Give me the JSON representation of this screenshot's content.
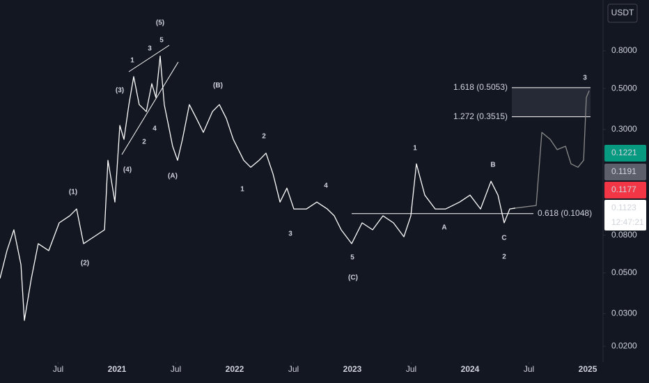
{
  "chart_data": {
    "type": "line",
    "currency": "USDT",
    "log_scale": true,
    "xlim": [
      2020.006,
      2025.13
    ],
    "xticks": [
      {
        "value": 2020.5,
        "label": "Jul"
      },
      2021,
      {
        "value": 2021.5,
        "label": "Jul"
      },
      2022,
      {
        "value": 2022.5,
        "label": "Jul"
      },
      2023,
      {
        "value": 2023.5,
        "label": "Jul"
      },
      2024,
      {
        "value": 2024.5,
        "label": "Jul"
      },
      2025
    ],
    "ylim": [
      0.0164,
      1.51
    ],
    "yticks": [
      {
        "value": 0.8,
        "label": "0.8000"
      },
      {
        "value": 0.5,
        "label": "0.5000"
      },
      {
        "value": 0.3,
        "label": "0.3000"
      },
      {
        "value": 0.08,
        "label": "0.0800"
      },
      {
        "value": 0.05,
        "label": "0.0500"
      },
      {
        "value": 0.03,
        "label": "0.0300"
      },
      {
        "value": 0.02,
        "label": "0.0200"
      }
    ],
    "series": [
      {
        "color": "#ffffff",
        "x": [
          2020.006,
          2020.065,
          2020.124,
          2020.184,
          2020.213,
          2020.272,
          2020.331,
          2020.42,
          2020.509,
          2020.598,
          2020.657,
          2020.716,
          2020.805,
          2020.894,
          2020.923,
          2020.953,
          2020.982,
          2021.024,
          2021.059,
          2021.101,
          2021.142,
          2021.189,
          2021.249,
          2021.296,
          2021.331,
          2021.367,
          2021.402,
          2021.438,
          2021.473,
          2021.515,
          2021.556,
          2021.615,
          2021.675,
          2021.734,
          2021.811,
          2021.87,
          2021.929,
          2021.988,
          2022.077,
          2022.136,
          2022.207,
          2022.266,
          2022.326,
          2022.385,
          2022.444,
          2022.503,
          2022.61,
          2022.698,
          2022.787,
          2022.846,
          2022.905,
          2022.994,
          2023.083,
          2023.172,
          2023.26,
          2023.349,
          2023.438,
          2023.497,
          2023.544,
          2023.615,
          2023.704,
          2023.793,
          2023.911,
          2024.0,
          2024.089,
          2024.178,
          2024.237,
          2024.29,
          2024.337,
          2024.385
        ],
        "values": [
          0.0466,
          0.066,
          0.0856,
          0.0554,
          0.0276,
          0.0466,
          0.072,
          0.066,
          0.0934,
          0.102,
          0.111,
          0.072,
          0.0785,
          0.0856,
          0.204,
          0.157,
          0.121,
          0.315,
          0.265,
          0.409,
          0.58,
          0.409,
          0.375,
          0.531,
          0.447,
          0.75,
          0.409,
          0.315,
          0.243,
          0.204,
          0.265,
          0.409,
          0.344,
          0.289,
          0.375,
          0.409,
          0.344,
          0.265,
          0.204,
          0.187,
          0.204,
          0.223,
          0.172,
          0.121,
          0.144,
          0.111,
          0.111,
          0.121,
          0.111,
          0.102,
          0.0856,
          0.072,
          0.0934,
          0.0856,
          0.102,
          0.0934,
          0.0785,
          0.102,
          0.195,
          0.132,
          0.111,
          0.111,
          0.121,
          0.132,
          0.111,
          0.157,
          0.132,
          0.0934,
          0.111,
          0.1123
        ]
      },
      {
        "color": "#8a8a8a",
        "x": [
          2024.385,
          2024.562,
          2024.61,
          2024.681,
          2024.74,
          2024.811,
          2024.858,
          2024.917,
          2024.965,
          2024.988,
          2025.012
        ],
        "values": [
          0.1123,
          0.116,
          0.289,
          0.265,
          0.233,
          0.243,
          0.195,
          0.187,
          0.204,
          0.447,
          0.487
        ]
      }
    ],
    "levels": [
      {
        "value": 0.5053,
        "label": "1.618 (0.5053)"
      },
      {
        "value": 0.3515,
        "label": "1.272 (0.3515)"
      },
      {
        "value": 0.1048,
        "label": "0.618 (0.1048)"
      }
    ],
    "annotations": [
      "(5)",
      "5",
      "3",
      "1",
      "(3)",
      "4",
      "2",
      "(4)",
      "(A)",
      "(B)",
      "2",
      "1",
      "(1)",
      "(2)",
      "4",
      "3",
      "5",
      "(C)",
      "1",
      "A",
      "B",
      "C",
      "2",
      "3"
    ],
    "price_labels": [
      {
        "value": 0.1221,
        "color": "#089981"
      },
      {
        "value": 0.1191,
        "color": "#5d606b"
      },
      {
        "value": 0.1177,
        "color": "#f23645"
      },
      {
        "value": 0.1123,
        "color": "#ffffff"
      }
    ],
    "countdown": "12:47:21"
  }
}
